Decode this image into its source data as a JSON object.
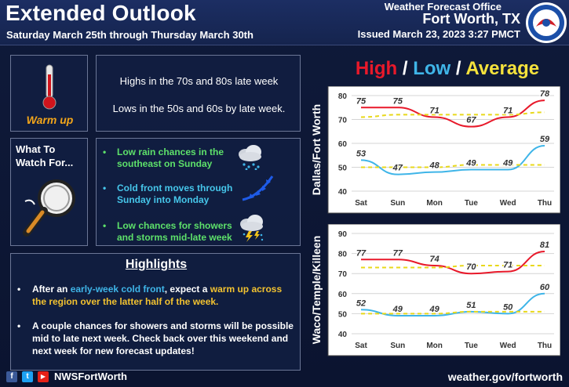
{
  "header": {
    "title": "Extended Outlook",
    "subtitle": "Saturday March 25th through Thursday March 30th",
    "office": "Weather Forecast Office",
    "city": "Fort Worth, TX",
    "issued": "Issued March 23, 2023 3:27 PMCT"
  },
  "warm_panel": {
    "label": "Warm up",
    "icon": "thermometer-icon"
  },
  "highs_panel": {
    "line1": "Highs in the 70s and 80s late week",
    "line2": "Lows in the 50s and 60s by late week."
  },
  "watch_panel": {
    "label_line1": "What To",
    "label_line2": "Watch For...",
    "icon": "magnifying-glass-icon"
  },
  "bullets": [
    {
      "line1": "Low rain chances in the",
      "line2": "southeast on Sunday",
      "color": "#5de06a",
      "icon": "rain-cloud-icon"
    },
    {
      "line1": "Cold front moves through",
      "line2": "Sunday into Monday",
      "color": "#46c6ea",
      "icon": "cold-front-icon"
    },
    {
      "line1": "Low chances for showers",
      "line2": "and storms mid-late week",
      "color": "#5de06a",
      "icon": "thunderstorm-icon"
    }
  ],
  "highlights": {
    "title": "Highlights",
    "item1": {
      "a": "After an ",
      "b": "early-week cold front",
      "c": ", expect a ",
      "d": "warm up across",
      "e": "the region over the latter half of the week."
    },
    "item2": {
      "line1": "A couple chances for showers and storms will be possible",
      "line2": "mid to late next week. Check back over this weekend and",
      "line3": "next week for new forecast updates!"
    }
  },
  "legend": {
    "high": "High",
    "sep": "/",
    "low": "Low",
    "avg": "Average"
  },
  "colors": {
    "high": "#e8192a",
    "low": "#3fb5e8",
    "avg": "#f5e23c"
  },
  "chart_data": [
    {
      "type": "line",
      "ylabel": "Dallas/Fort Worth",
      "categories": [
        "Sat",
        "Sun",
        "Mon",
        "Tue",
        "Wed",
        "Thu"
      ],
      "ylim": [
        40,
        80
      ],
      "yticks": [
        40,
        50,
        60,
        70,
        80
      ],
      "series": [
        {
          "name": "High",
          "values": [
            75,
            75,
            71,
            67,
            71,
            78
          ]
        },
        {
          "name": "Low",
          "values": [
            53,
            47,
            48,
            49,
            49,
            59
          ]
        },
        {
          "name": "Average",
          "values": [
            71,
            72,
            72,
            72,
            72,
            73
          ]
        },
        {
          "name": "Average",
          "values": [
            50,
            50,
            50,
            51,
            51,
            51
          ]
        }
      ]
    },
    {
      "type": "line",
      "ylabel": "Waco/Temple/Killeen",
      "categories": [
        "Sat",
        "Sun",
        "Mon",
        "Tue",
        "Wed",
        "Thu"
      ],
      "ylim": [
        40,
        90
      ],
      "yticks": [
        40,
        50,
        60,
        70,
        80,
        90
      ],
      "series": [
        {
          "name": "High",
          "values": [
            77,
            77,
            74,
            70,
            71,
            81
          ]
        },
        {
          "name": "Low",
          "values": [
            52,
            49,
            49,
            51,
            50,
            60
          ]
        },
        {
          "name": "Average",
          "values": [
            73,
            73,
            73,
            74,
            74,
            74
          ]
        },
        {
          "name": "Average",
          "values": [
            50,
            50,
            50,
            51,
            51,
            51
          ]
        }
      ]
    }
  ],
  "footer": {
    "handle": "NWSFortWorth",
    "site": "weather.gov/fortworth",
    "facebook": "f",
    "twitter": "t",
    "youtube": "▶"
  }
}
